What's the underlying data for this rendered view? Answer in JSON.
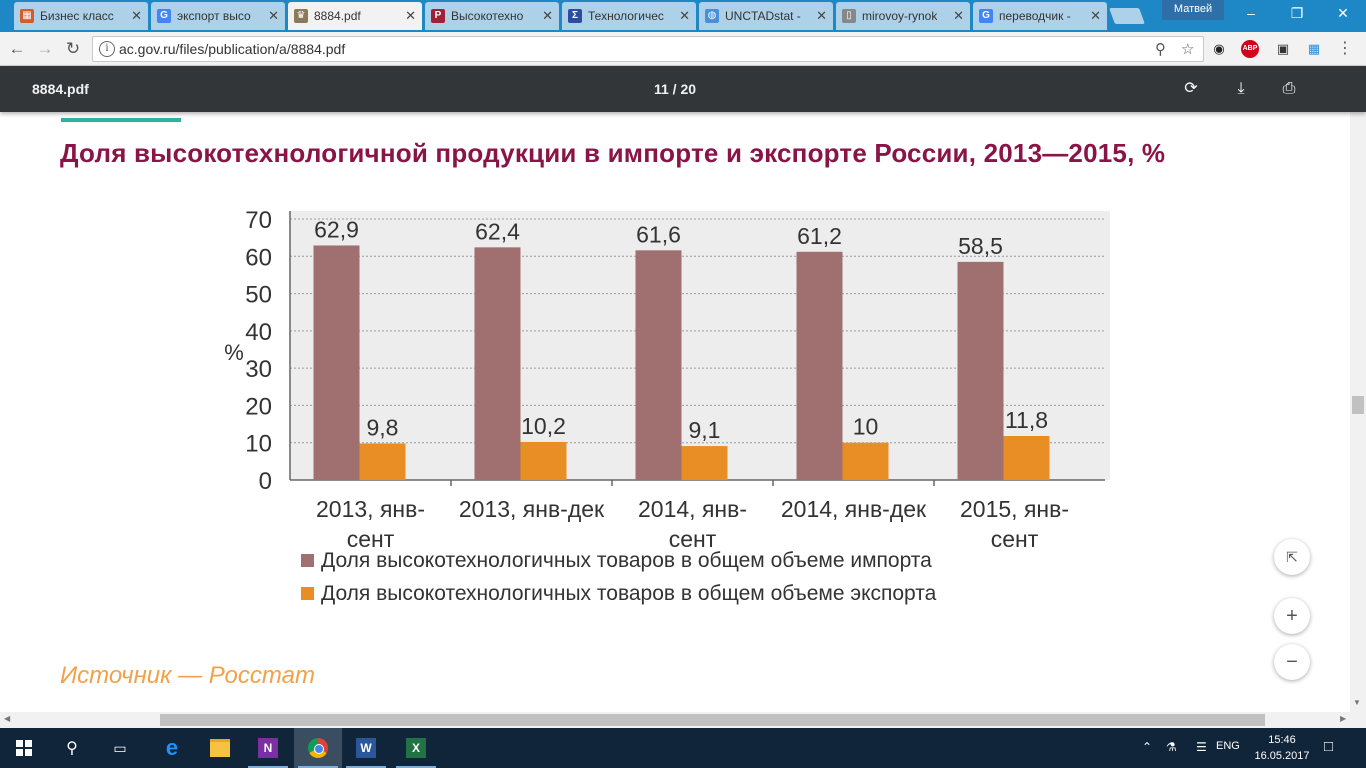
{
  "browser": {
    "tabs": [
      {
        "label": "Бизнес класс",
        "icon": "grid-icon",
        "color": "#d45b2a",
        "active": false
      },
      {
        "label": "экспорт высо",
        "icon": "google-icon",
        "color": "#4285f4",
        "active": false
      },
      {
        "label": "8884.pdf",
        "icon": "emblem-icon",
        "color": "#8a7a5a",
        "active": true
      },
      {
        "label": "Высокотехно",
        "icon": "bp-icon",
        "color": "#9b2335",
        "active": false
      },
      {
        "label": "Технологичес",
        "icon": "sigma-icon",
        "color": "#2b4f9e",
        "active": false
      },
      {
        "label": "UNCTADstat -",
        "icon": "un-icon",
        "color": "#4a90d9",
        "active": false
      },
      {
        "label": "mirovoy-rynok",
        "icon": "document-icon",
        "color": "#888888",
        "active": false
      },
      {
        "label": "переводчик -",
        "icon": "google-icon",
        "color": "#4285f4",
        "active": false
      }
    ],
    "profile_name": "Матвей",
    "url": "ac.gov.ru/files/publication/a/8884.pdf"
  },
  "pdf": {
    "filename": "8884.pdf",
    "page_indicator": "11  /  20"
  },
  "document": {
    "title": "Доля высокотехнологичной продукции в импорте и экспорте России, 2013—2015, %",
    "source": "Источник — Росстат"
  },
  "chart_data": {
    "type": "bar",
    "categories": [
      [
        "2013, янв-",
        "сент"
      ],
      [
        "2013, янв-дек"
      ],
      [
        "2014, янв-",
        "сент"
      ],
      [
        "2014, янв-дек"
      ],
      [
        "2015, янв-",
        "сент"
      ]
    ],
    "series": [
      {
        "name": "Доля  высокотехнологичных товаров в общем объеме импорта",
        "color": "#a07070",
        "values": [
          62.9,
          62.4,
          61.6,
          61.2,
          58.5
        ],
        "labels": [
          "62,9",
          "62,4",
          "61,6",
          "61,2",
          "58,5"
        ]
      },
      {
        "name": "Доля  высокотехнологичных товаров в общем объеме экспорта",
        "color": "#e98e25",
        "values": [
          9.8,
          10.2,
          9.1,
          10,
          11.8
        ],
        "labels": [
          "9,8",
          "10,2",
          "9,1",
          "10",
          "11,8"
        ]
      }
    ],
    "ylabel": "%",
    "ylim": [
      0,
      70
    ],
    "yticks": [
      "0",
      "10",
      "20",
      "30",
      "40",
      "50",
      "60",
      "70"
    ],
    "grid": true
  },
  "taskbar": {
    "language": "ENG",
    "time": "15:46",
    "date": "16.05.2017"
  }
}
